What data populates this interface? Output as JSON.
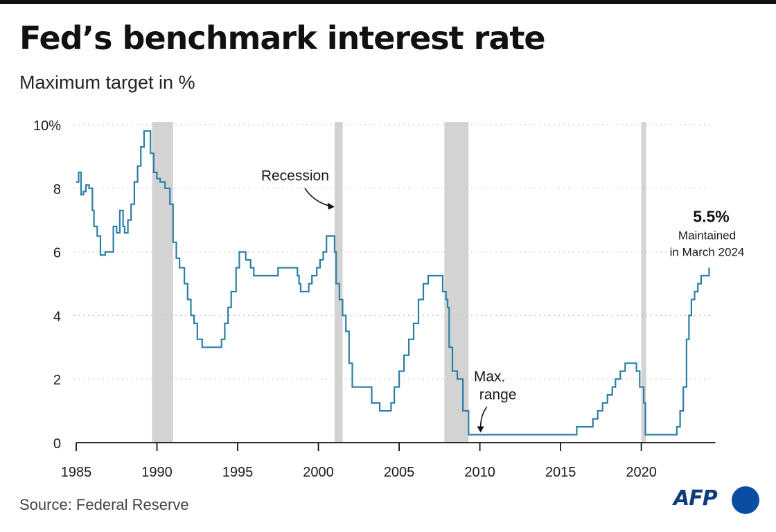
{
  "header": {
    "title": "Fed’s benchmark interest rate",
    "subtitle": "Maximum target in %"
  },
  "footer": {
    "source": "Source: Federal Reserve",
    "logo_text": "AFP"
  },
  "colors": {
    "line": "#2b7fa6",
    "recession": "#d3d3d3",
    "grid": "#c8c8c8",
    "axis": "#111111"
  },
  "chart_data": {
    "type": "line",
    "title": "Fed’s benchmark interest rate",
    "subtitle": "Maximum target in %",
    "xlabel": "",
    "ylabel": "",
    "xlim": [
      1985,
      2024.5
    ],
    "ylim": [
      0,
      10
    ],
    "x_ticks": [
      1985,
      1990,
      1995,
      2000,
      2005,
      2010,
      2015,
      2020
    ],
    "y_ticks": [
      {
        "value": 0,
        "label": "0"
      },
      {
        "value": 2,
        "label": "2"
      },
      {
        "value": 4,
        "label": "4"
      },
      {
        "value": 6,
        "label": "6"
      },
      {
        "value": 8,
        "label": "8"
      },
      {
        "value": 10,
        "label": "10%"
      }
    ],
    "grid": "horizontal dotted",
    "recessions": [
      {
        "start": 1989.7,
        "end": 1991.0
      },
      {
        "start": 2001.0,
        "end": 2001.5
      },
      {
        "start": 2007.8,
        "end": 2009.3
      },
      {
        "start": 2020.0,
        "end": 2020.3
      }
    ],
    "series": [
      {
        "name": "",
        "x": [
          1985.0,
          1985.15,
          1985.3,
          1985.45,
          1985.6,
          1985.8,
          1986.0,
          1986.1,
          1986.3,
          1986.5,
          1986.6,
          1986.8,
          1987.0,
          1987.3,
          1987.5,
          1987.7,
          1987.9,
          1988.0,
          1988.2,
          1988.4,
          1988.6,
          1988.8,
          1989.0,
          1989.2,
          1989.4,
          1989.6,
          1989.8,
          1990.0,
          1990.2,
          1990.5,
          1990.8,
          1991.0,
          1991.2,
          1991.4,
          1991.7,
          1991.9,
          1992.1,
          1992.3,
          1992.5,
          1992.8,
          1993.0,
          1993.5,
          1994.0,
          1994.2,
          1994.4,
          1994.6,
          1994.9,
          1995.1,
          1995.5,
          1995.8,
          1996.0,
          1996.5,
          1997.0,
          1997.5,
          1998.0,
          1998.7,
          1998.8,
          1998.9,
          1999.4,
          1999.6,
          1999.9,
          2000.1,
          2000.3,
          2000.5,
          2000.8,
          2001.0,
          2001.1,
          2001.3,
          2001.5,
          2001.7,
          2001.9,
          2002.1,
          2002.8,
          2003.3,
          2003.5,
          2003.8,
          2004.2,
          2004.5,
          2004.7,
          2005.0,
          2005.3,
          2005.6,
          2005.9,
          2006.2,
          2006.5,
          2006.8,
          2007.5,
          2007.7,
          2007.9,
          2008.0,
          2008.1,
          2008.3,
          2008.6,
          2008.8,
          2008.95,
          2009.3,
          2010.0,
          2012.0,
          2014.0,
          2015.9,
          2016.0,
          2016.9,
          2017.0,
          2017.3,
          2017.6,
          2017.9,
          2018.2,
          2018.4,
          2018.7,
          2019.0,
          2019.5,
          2019.7,
          2019.9,
          2020.15,
          2020.25,
          2021.0,
          2022.0,
          2022.2,
          2022.4,
          2022.6,
          2022.8,
          2022.95,
          2023.1,
          2023.3,
          2023.5,
          2023.7,
          2024.2
        ],
        "y": [
          8.2,
          8.5,
          7.8,
          7.9,
          8.1,
          8.0,
          7.3,
          6.8,
          6.5,
          5.9,
          5.9,
          6.0,
          6.0,
          6.8,
          6.6,
          7.3,
          6.8,
          6.6,
          7.0,
          7.5,
          8.2,
          8.7,
          9.3,
          9.8,
          9.8,
          9.1,
          8.5,
          8.3,
          8.2,
          8.0,
          7.5,
          6.3,
          5.8,
          5.5,
          5.0,
          4.5,
          4.0,
          3.75,
          3.25,
          3.0,
          3.0,
          3.0,
          3.25,
          3.75,
          4.25,
          4.75,
          5.5,
          6.0,
          5.75,
          5.5,
          5.25,
          5.25,
          5.25,
          5.5,
          5.5,
          5.25,
          5.0,
          4.75,
          5.0,
          5.25,
          5.5,
          5.75,
          6.0,
          6.5,
          6.5,
          6.0,
          5.0,
          4.5,
          4.0,
          3.5,
          2.5,
          1.75,
          1.75,
          1.25,
          1.25,
          1.0,
          1.0,
          1.25,
          1.75,
          2.25,
          2.75,
          3.25,
          3.75,
          4.5,
          5.0,
          5.25,
          5.25,
          4.75,
          4.5,
          4.25,
          3.0,
          2.25,
          2.0,
          2.0,
          1.0,
          0.25,
          0.25,
          0.25,
          0.25,
          0.25,
          0.5,
          0.5,
          0.75,
          1.0,
          1.25,
          1.5,
          1.75,
          2.0,
          2.25,
          2.5,
          2.5,
          2.25,
          1.75,
          1.25,
          0.25,
          0.25,
          0.25,
          0.5,
          1.0,
          1.75,
          3.25,
          4.0,
          4.5,
          4.75,
          5.0,
          5.25,
          5.5
        ]
      }
    ],
    "annotations": [
      {
        "text": "Recession",
        "x": 2001.0,
        "y": 7.7
      },
      {
        "text_lines": [
          "Max.",
          "range"
        ],
        "x": 2010.0,
        "y": 0.25
      },
      {
        "value_label": "5.5%",
        "text_lines": [
          "Maintained",
          "in March 2024"
        ],
        "x": 2024.2,
        "y": 5.5
      }
    ]
  }
}
